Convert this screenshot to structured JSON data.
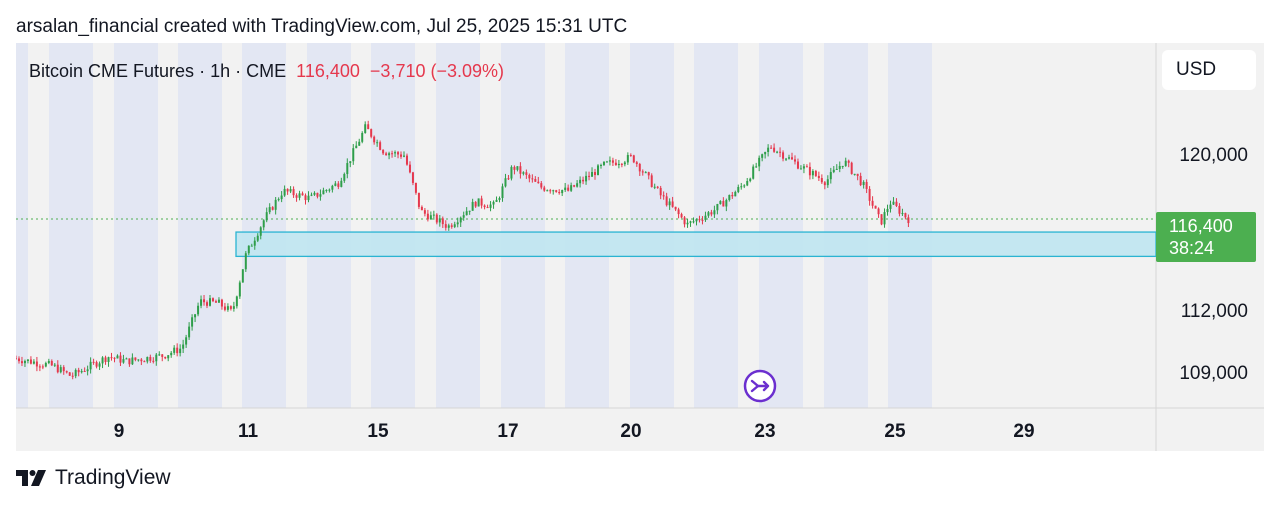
{
  "caption": "arsalan_financial created with TradingView.com, Jul 25, 2025 15:31 UTC",
  "legend": {
    "symbol": "Bitcoin CME Futures",
    "sep1": "·",
    "interval": "1h",
    "sep2": "·",
    "exchange": "CME",
    "last_price": "116,400",
    "change": "−3,710",
    "change_pct": "(−3.09%)"
  },
  "currency": "USD",
  "price_tag": {
    "price": "116,400",
    "countdown": "38:24"
  },
  "branding": "TradingView",
  "icons": {
    "event_marker": "upcoming-event-icon",
    "logo": "tradingview-logo-icon"
  },
  "colors": {
    "up": "#2e9e4a",
    "down": "#e5384d",
    "session_band": "#e3e7f3",
    "zone_fill": "#bfe6f1",
    "zone_stroke": "#2bb4d2",
    "price_line": "#4caf50",
    "event": "#6b2fcf"
  },
  "chart_data": {
    "type": "candlestick",
    "title": "Bitcoin CME Futures · 1h · CME",
    "x_ticks": [
      "9",
      "11",
      "15",
      "17",
      "20",
      "23",
      "25",
      "29"
    ],
    "y_ticks": [
      "120,000",
      "116,400",
      "112,000",
      "109,000"
    ],
    "ylim": [
      106300,
      125800
    ],
    "last_price": 116400,
    "support_zone": {
      "from": 114400,
      "to": 115700
    },
    "path_x": [
      0,
      4,
      6,
      10,
      12,
      16,
      18,
      20,
      22,
      23.5,
      25,
      27,
      29,
      32,
      35,
      38,
      40,
      42.2,
      44,
      47,
      50,
      52,
      54,
      57,
      60,
      64,
      67,
      70,
      73,
      76,
      79,
      82,
      85,
      88,
      90,
      92,
      94,
      95,
      97
    ],
    "path_y": [
      108950,
      108550,
      108000,
      109050,
      108800,
      109100,
      109500,
      112000,
      111900,
      111400,
      114500,
      116400,
      117900,
      117500,
      118300,
      121300,
      120000,
      119800,
      116800,
      116000,
      117300,
      117100,
      119200,
      118100,
      117900,
      119300,
      119700,
      117700,
      116100,
      116900,
      118200,
      120300,
      119300,
      118400,
      119500,
      118300,
      116200,
      117300,
      116400
    ]
  }
}
